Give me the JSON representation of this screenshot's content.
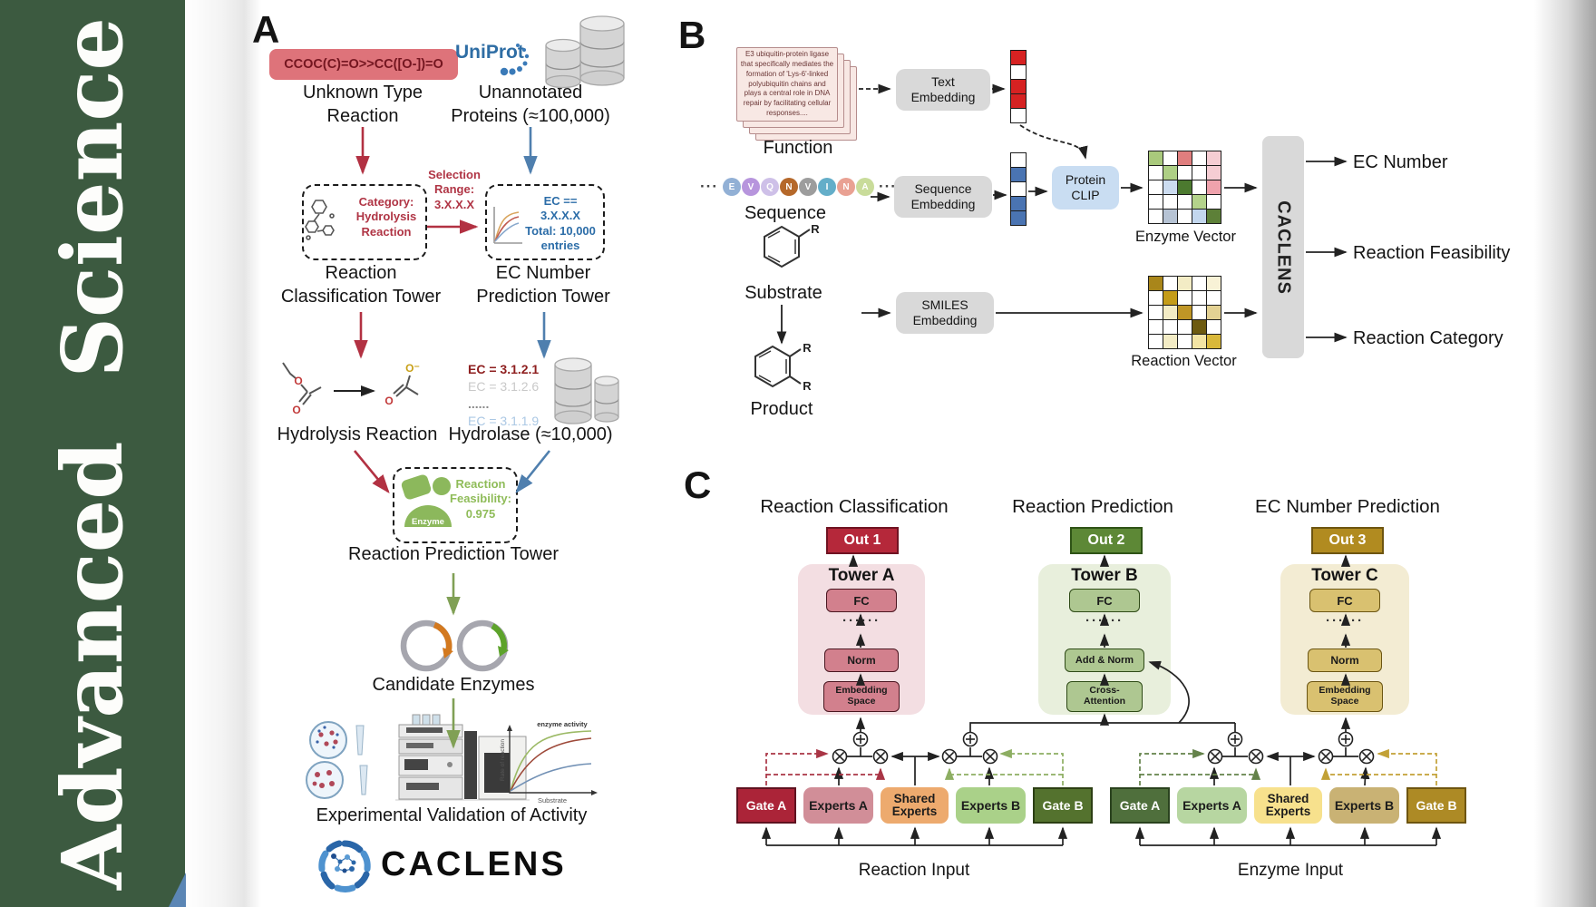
{
  "journal": {
    "word1": "Advanced",
    "word2": "Science"
  },
  "panelA": {
    "label": "A",
    "smiles_box": "CCOC(C)=O>>CC([O-])=O",
    "unknown_reaction": "Unknown Type\nReaction",
    "uniprot": "UniProt",
    "unannotated": "Unannotated\nProteins (≈100,000)",
    "selection_range": "Selection\nRange:\n3.X.X.X",
    "category_box": "Category:\nHydrolysis\nReaction",
    "ec_box": "EC == 3.X.X.X\nTotal: 10,000\nentries",
    "classification_tower": "Reaction\nClassification Tower",
    "ec_tower": "EC Number\nPrediction Tower",
    "hydrolysis_reaction": "Hydrolysis Reaction",
    "hydrolase": "Hydrolase (≈10,000)",
    "ec_list": [
      {
        "text": "EC = 3.1.2.1",
        "color": "#8e1f1f",
        "bold": true
      },
      {
        "text": "EC = 3.1.2.6",
        "color": "#c9c9c9",
        "bold": false
      },
      {
        "text": "......",
        "color": "#8a8a8a",
        "bold": true
      },
      {
        "text": "EC = 3.1.1.9",
        "color": "#abc8e4",
        "bold": false
      }
    ],
    "enzyme_blob": "Enzyme",
    "feasibility": "Reaction\nFeasibility:\n0.975",
    "prediction_tower": "Reaction Prediction Tower",
    "candidate_enzymes": "Candidate Enzymes",
    "mini_chart": {
      "annotation": "enzyme activity",
      "ylabel": "Rate of reaction",
      "xlabel": "Substrate"
    },
    "validation": "Experimental Validation of Activity",
    "wordmark": "CACLENS",
    "atoms": {
      "o": "O",
      "o_minus": "O⁻"
    }
  },
  "panelB": {
    "label": "B",
    "function_card": "E3 ubiquitin-protein ligase that specifically mediates the formation of 'Lys-6'-linked polyubiquitin chains and plays a central role in DNA repair by facilitating cellular responses....",
    "function_label": "Function",
    "ellipsis": "···",
    "residues": [
      {
        "letter": "E",
        "color": "#92b0d5"
      },
      {
        "letter": "V",
        "color": "#b795dd"
      },
      {
        "letter": "Q",
        "color": "#cec0e8"
      },
      {
        "letter": "N",
        "color": "#b5682a"
      },
      {
        "letter": "V",
        "color": "#9d9d9d"
      },
      {
        "letter": "I",
        "color": "#64aec9"
      },
      {
        "letter": "N",
        "color": "#e9a193"
      },
      {
        "letter": "A",
        "color": "#c9dc9a"
      }
    ],
    "sequence_label": "Sequence",
    "substrate_label": "Substrate",
    "product_label": "Product",
    "r_label": "R",
    "text_embedding": "Text\nEmbedding",
    "sequence_embedding": "Sequence\nEmbedding",
    "smiles_embedding": "SMILES\nEmbedding",
    "protein_clip": "Protein\nCLIP",
    "text_vector": [
      "#d62222",
      "#ffffff",
      "#d62222",
      "#d62222",
      "#ffffff"
    ],
    "sequence_vector": [
      "#ffffff",
      "#4a74b2",
      "#ffffff",
      "#4a74b2",
      "#4a74b2"
    ],
    "enzyme_vector": {
      "label": "Enzyme Vector",
      "cells": [
        [
          "#a9c97c",
          "#ffffff",
          "#e07e7e",
          "#ffffff",
          "#f5cdd3"
        ],
        [
          "#ffffff",
          "#aecf85",
          "#ffffff",
          "#ffffff",
          "#f5cdd3"
        ],
        [
          "#ffffff",
          "#ccdcf0",
          "#4c7a2f",
          "#ffffff",
          "#efa2ac"
        ],
        [
          "#ffffff",
          "#ffffff",
          "#ffffff",
          "#b4d38b",
          "#ffffff"
        ],
        [
          "#ffffff",
          "#b6c3d4",
          "#ffffff",
          "#c3d7ee",
          "#5d8038"
        ]
      ]
    },
    "reaction_vector": {
      "label": "Reaction Vector",
      "cells": [
        [
          "#a9861a",
          "#ffffff",
          "#f3ecc5",
          "#ffffff",
          "#f8f2d6"
        ],
        [
          "#ffffff",
          "#c49c19",
          "#ffffff",
          "#ffffff",
          "#ffffff"
        ],
        [
          "#ffffff",
          "#f3ecc5",
          "#bf9626",
          "#ffffff",
          "#e3d193"
        ],
        [
          "#ffffff",
          "#ffffff",
          "#ffffff",
          "#6d5a10",
          "#ffffff"
        ],
        [
          "#ffffff",
          "#f3ecc5",
          "#ffffff",
          "#f3e4a4",
          "#d9b83a"
        ]
      ]
    },
    "caclens": "CACLENS",
    "outputs": [
      "EC Number",
      "Reaction Feasibility",
      "Reaction Category"
    ]
  },
  "panelC": {
    "label": "C",
    "columns": [
      "Reaction Classification",
      "Reaction Prediction",
      "EC Number Prediction"
    ],
    "outs": [
      {
        "label": "Out 1",
        "bg": "#b5283a",
        "border": "#701322"
      },
      {
        "label": "Out 2",
        "bg": "#5d8836",
        "border": "#2f5316"
      },
      {
        "label": "Out 3",
        "bg": "#b18b20",
        "border": "#6e5510"
      }
    ],
    "towers": [
      {
        "title": "Tower A",
        "fc": "FC",
        "dots": "······",
        "mid": "Norm",
        "bottom": "Embedding\nSpace"
      },
      {
        "title": "Tower B",
        "fc": "FC",
        "dots": "······",
        "mid": "Add & Norm",
        "bottom": "Cross-\nAttention"
      },
      {
        "title": "Tower C",
        "fc": "FC",
        "dots": "······",
        "mid": "Norm",
        "bottom": "Embedding\nSpace"
      }
    ],
    "moe_left": {
      "input": "Reaction Input",
      "boxes": [
        {
          "label": "Gate A",
          "type": "gate",
          "bg": "#ab2438",
          "text": "#ffffff",
          "border": "#5f1220"
        },
        {
          "label": "Experts A",
          "type": "experts",
          "bg": "#d18e98",
          "text": "#1c1c1c"
        },
        {
          "label": "Shared\nExperts",
          "type": "shared",
          "bg": "#edaa6e",
          "text": "#1c1c1c"
        },
        {
          "label": "Experts B",
          "type": "experts",
          "bg": "#aad189",
          "text": "#1c1c1c"
        },
        {
          "label": "Gate B",
          "type": "gate",
          "bg": "#54722e",
          "text": "#ffffff",
          "border": "#2c3f14"
        }
      ]
    },
    "moe_right": {
      "input": "Enzyme Input",
      "boxes": [
        {
          "label": "Gate A",
          "type": "gate",
          "bg": "#4f6f3c",
          "text": "#ffffff",
          "border": "#2a421e"
        },
        {
          "label": "Experts A",
          "type": "experts",
          "bg": "#b7d6a1",
          "text": "#1c1c1c"
        },
        {
          "label": "Shared\nExperts",
          "type": "shared",
          "bg": "#f7e18d",
          "text": "#1c1c1c"
        },
        {
          "label": "Experts B",
          "type": "experts",
          "bg": "#c9b274",
          "text": "#1c1c1c"
        },
        {
          "label": "Gate B",
          "type": "gate",
          "bg": "#ad8a25",
          "text": "#ffffff",
          "border": "#6e5510"
        }
      ]
    }
  }
}
